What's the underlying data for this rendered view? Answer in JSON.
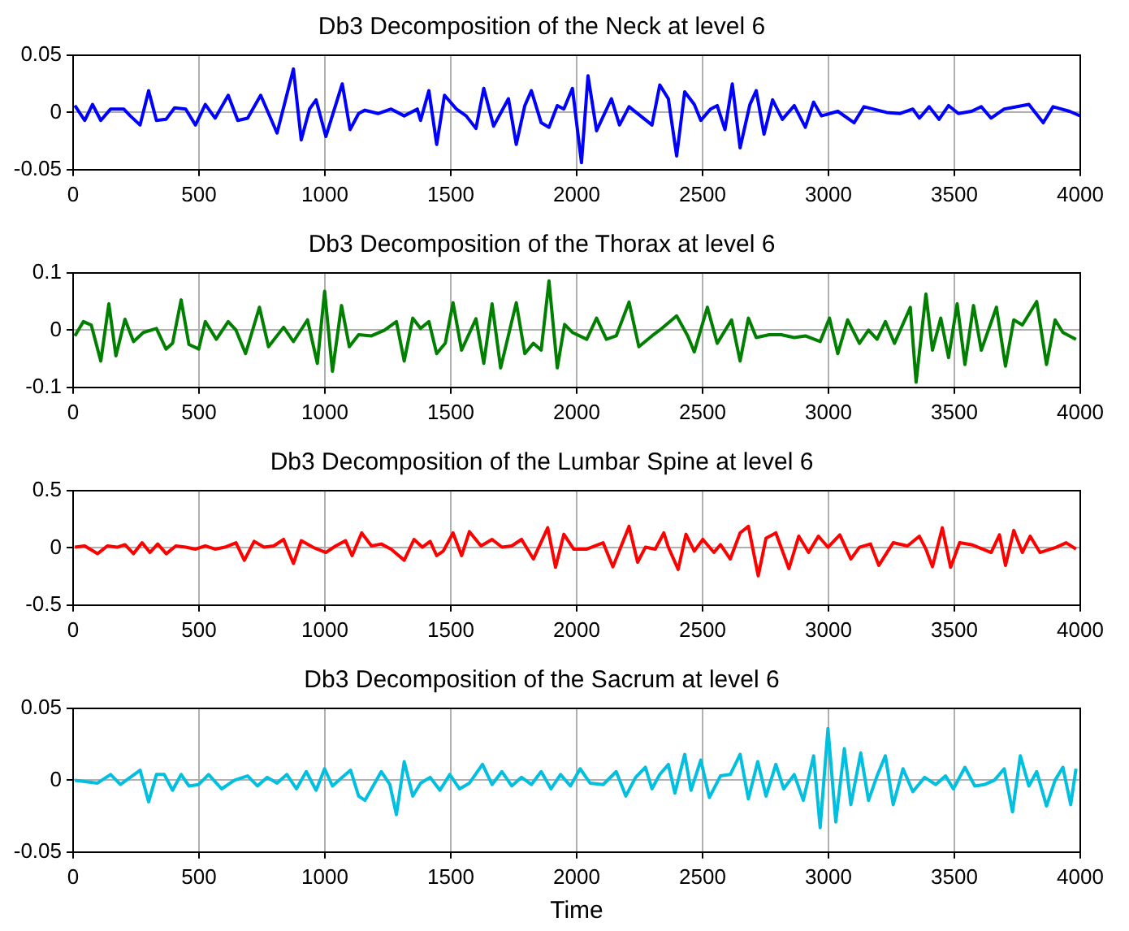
{
  "chart_data": [
    {
      "type": "line",
      "title": "Db3 Decomposition of the Neck at level 6",
      "xlim": [
        0,
        4000
      ],
      "xticks": [
        0,
        500,
        1000,
        1500,
        2000,
        2500,
        3000,
        3500,
        4000
      ],
      "ylim": [
        -0.05,
        0.05
      ],
      "yticks": [
        -0.05,
        0,
        0.05
      ],
      "grid": true,
      "line_style": "solid",
      "marker": "none",
      "series": [
        {
          "color": "#0000ff",
          "x": [
            7,
            46,
            77,
            110,
            149,
            201,
            227,
            266,
            300,
            331,
            369,
            403,
            447,
            486,
            525,
            564,
            616,
            654,
            693,
            745,
            810,
            875,
            906,
            939,
            965,
            1004,
            1069,
            1100,
            1134,
            1159,
            1211,
            1263,
            1315,
            1367,
            1380,
            1413,
            1444,
            1475,
            1522,
            1561,
            1600,
            1631,
            1670,
            1729,
            1760,
            1794,
            1820,
            1859,
            1890,
            1923,
            1949,
            1983,
            2019,
            2045,
            2079,
            2138,
            2170,
            2208,
            2299,
            2330,
            2364,
            2397,
            2429,
            2467,
            2493,
            2532,
            2558,
            2589,
            2618,
            2649,
            2688,
            2713,
            2744,
            2778,
            2817,
            2864,
            2908,
            2941,
            2972,
            3037,
            3102,
            3141,
            3231,
            3283,
            3335,
            3361,
            3400,
            3439,
            3477,
            3516,
            3568,
            3607,
            3646,
            3698,
            3796,
            3853,
            3892,
            3957,
            4000
          ],
          "values": [
            0.006,
            -0.007,
            0.007,
            -0.007,
            0.003,
            0.003,
            -0.003,
            -0.011,
            0.019,
            -0.007,
            -0.006,
            0.004,
            0.003,
            -0.011,
            0.007,
            -0.005,
            0.015,
            -0.007,
            -0.005,
            0.015,
            -0.018,
            0.038,
            -0.024,
            0.003,
            0.011,
            -0.021,
            0.025,
            -0.015,
            -0.001,
            0.002,
            -0.001,
            0.003,
            -0.003,
            0.003,
            -0.007,
            0.019,
            -0.028,
            0.015,
            0.003,
            -0.003,
            -0.014,
            0.021,
            -0.012,
            0.012,
            -0.028,
            0.006,
            0.019,
            -0.009,
            -0.013,
            0.006,
            0.003,
            0.021,
            -0.044,
            0.032,
            -0.016,
            0.012,
            -0.011,
            0.005,
            -0.011,
            0.024,
            0.012,
            -0.038,
            0.018,
            0.007,
            -0.007,
            0.003,
            0.006,
            -0.015,
            0.025,
            -0.031,
            0.007,
            0.019,
            -0.019,
            0.011,
            -0.006,
            0.006,
            -0.013,
            0.009,
            -0.003,
            0.001,
            -0.009,
            0.005,
            0,
            -0.001,
            0.003,
            -0.005,
            0.005,
            -0.006,
            0.006,
            -0.001,
            0.001,
            0.005,
            -0.005,
            0.003,
            0.007,
            -0.009,
            0.005,
            0.001,
            -0.003
          ]
        }
      ]
    },
    {
      "type": "line",
      "title": "Db3 Decomposition of the Thorax at level 6",
      "xlim": [
        0,
        4000
      ],
      "xticks": [
        0,
        500,
        1000,
        1500,
        2000,
        2500,
        3000,
        3500,
        4000
      ],
      "ylim": [
        -0.1,
        0.1
      ],
      "yticks": [
        -0.1,
        0,
        0.1
      ],
      "grid": true,
      "line_style": "solid",
      "marker": "none",
      "series": [
        {
          "color": "#007f00",
          "x": [
            7,
            41,
            72,
            110,
            142,
            170,
            206,
            240,
            279,
            331,
            369,
            395,
            429,
            460,
            499,
            525,
            569,
            616,
            647,
            685,
            740,
            776,
            836,
            875,
            931,
            970,
            999,
            1030,
            1066,
            1097,
            1134,
            1185,
            1237,
            1284,
            1315,
            1349,
            1380,
            1413,
            1444,
            1478,
            1509,
            1543,
            1600,
            1631,
            1664,
            1698,
            1760,
            1794,
            1828,
            1859,
            1890,
            1923,
            1952,
            1983,
            2040,
            2079,
            2118,
            2157,
            2208,
            2247,
            2299,
            2338,
            2397,
            2441,
            2467,
            2519,
            2558,
            2615,
            2649,
            2682,
            2713,
            2765,
            2812,
            2864,
            2908,
            2967,
            3004,
            3037,
            3076,
            3123,
            3159,
            3193,
            3226,
            3262,
            3325,
            3348,
            3387,
            3413,
            3446,
            3477,
            3511,
            3542,
            3576,
            3607,
            3667,
            3703,
            3736,
            3770,
            3827,
            3866,
            3900,
            3931,
            3983
          ],
          "values": [
            -0.01,
            0.015,
            0.009,
            -0.054,
            0.046,
            -0.045,
            0.019,
            -0.02,
            -0.004,
            0.003,
            -0.033,
            -0.023,
            0.053,
            -0.025,
            -0.033,
            0.015,
            -0.016,
            0.015,
            0,
            -0.041,
            0.04,
            -0.029,
            0.005,
            -0.02,
            0.018,
            -0.058,
            0.068,
            -0.072,
            0.043,
            -0.029,
            -0.008,
            -0.01,
            0,
            0.015,
            -0.054,
            0.021,
            0.003,
            0.015,
            -0.041,
            -0.023,
            0.048,
            -0.035,
            0.02,
            -0.058,
            0.046,
            -0.066,
            0.048,
            -0.041,
            -0.023,
            -0.035,
            0.086,
            -0.066,
            0.01,
            -0.004,
            -0.016,
            0.021,
            -0.016,
            -0.01,
            0.049,
            -0.029,
            -0.01,
            0.003,
            0.025,
            -0.01,
            -0.038,
            0.04,
            -0.023,
            0.018,
            -0.054,
            0.021,
            -0.013,
            -0.008,
            -0.008,
            -0.013,
            -0.01,
            -0.02,
            0.021,
            -0.041,
            0.018,
            -0.023,
            0,
            -0.016,
            0.015,
            -0.023,
            0.04,
            -0.091,
            0.063,
            -0.035,
            0.021,
            -0.048,
            0.046,
            -0.06,
            0.043,
            -0.035,
            0.04,
            -0.063,
            0.018,
            0.009,
            0.05,
            -0.06,
            0.018,
            -0.004,
            -0.016
          ]
        }
      ]
    },
    {
      "type": "line",
      "title": "Db3 Decomposition of the Lumbar Spine at level 6",
      "xlim": [
        0,
        4000
      ],
      "xticks": [
        0,
        500,
        1000,
        1500,
        2000,
        2500,
        3000,
        3500,
        4000
      ],
      "ylim": [
        -0.5,
        0.5
      ],
      "yticks": [
        -0.5,
        0,
        0.5
      ],
      "grid": true,
      "line_style": "solid",
      "marker": "none",
      "series": [
        {
          "color": "#ff0000",
          "x": [
            7,
            46,
            97,
            136,
            175,
            206,
            240,
            274,
            305,
            336,
            370,
            408,
            447,
            486,
            525,
            564,
            603,
            647,
            680,
            719,
            758,
            797,
            836,
            875,
            906,
            952,
            1004,
            1043,
            1082,
            1108,
            1146,
            1185,
            1224,
            1263,
            1315,
            1354,
            1387,
            1418,
            1444,
            1470,
            1509,
            1543,
            1574,
            1620,
            1664,
            1703,
            1742,
            1781,
            1828,
            1885,
            1916,
            1949,
            1988,
            2040,
            2105,
            2144,
            2208,
            2242,
            2273,
            2312,
            2346,
            2364,
            2403,
            2434,
            2467,
            2501,
            2545,
            2571,
            2610,
            2649,
            2682,
            2721,
            2752,
            2791,
            2843,
            2882,
            2921,
            2960,
            2998,
            3045,
            3089,
            3123,
            3167,
            3200,
            3257,
            3314,
            3361,
            3387,
            3413,
            3452,
            3485,
            3521,
            3568,
            3646,
            3679,
            3703,
            3736,
            3770,
            3801,
            3840,
            3905,
            3944,
            3983
          ],
          "values": [
            0.006,
            0.017,
            -0.051,
            0.017,
            0.006,
            0.028,
            -0.051,
            0.045,
            -0.04,
            0.034,
            -0.051,
            0.017,
            0.006,
            -0.011,
            0.017,
            -0.011,
            0.006,
            0.045,
            -0.108,
            0.057,
            0.006,
            0.017,
            0.074,
            -0.136,
            0.063,
            0.006,
            -0.04,
            0.017,
            0.063,
            -0.068,
            0.131,
            0.017,
            0.034,
            -0.011,
            -0.108,
            0.074,
            0.006,
            0.057,
            -0.068,
            -0.028,
            0.131,
            -0.068,
            0.142,
            0.017,
            0.074,
            0.006,
            0.017,
            0.074,
            -0.097,
            0.176,
            -0.17,
            0.119,
            -0.011,
            -0.011,
            0.045,
            -0.165,
            0.188,
            -0.125,
            0.006,
            -0.011,
            0.131,
            0.006,
            -0.188,
            0.119,
            -0.028,
            0.074,
            -0.04,
            0.028,
            -0.097,
            0.131,
            0.188,
            -0.244,
            0.085,
            0.131,
            -0.182,
            0.102,
            -0.04,
            0.102,
            0.006,
            0.114,
            -0.097,
            0.006,
            0.034,
            -0.153,
            0.045,
            0.017,
            0.102,
            -0.011,
            -0.165,
            0.176,
            -0.17,
            0.045,
            0.028,
            -0.04,
            0.114,
            -0.153,
            0.153,
            -0.04,
            0.102,
            -0.04,
            0.006,
            0.045,
            -0.011
          ]
        }
      ]
    },
    {
      "type": "line",
      "title": "Db3 Decomposition of the Sacrum at level 6",
      "xlabel": "Time",
      "xlim": [
        0,
        4000
      ],
      "xticks": [
        0,
        500,
        1000,
        1500,
        2000,
        2500,
        3000,
        3500,
        4000
      ],
      "ylim": [
        -0.05,
        0.05
      ],
      "yticks": [
        -0.05,
        0,
        0.05
      ],
      "grid": true,
      "line_style": "solid",
      "marker": "none",
      "series": [
        {
          "color": "#00bfdf",
          "x": [
            7,
            97,
            149,
            188,
            227,
            266,
            300,
            331,
            362,
            395,
            429,
            460,
            499,
            538,
            590,
            641,
            693,
            732,
            771,
            810,
            849,
            887,
            926,
            965,
            999,
            1030,
            1069,
            1102,
            1134,
            1159,
            1224,
            1258,
            1284,
            1315,
            1349,
            1380,
            1418,
            1457,
            1496,
            1535,
            1574,
            1626,
            1664,
            1703,
            1742,
            1781,
            1820,
            1859,
            1898,
            1936,
            1975,
            2014,
            2053,
            2105,
            2157,
            2195,
            2234,
            2273,
            2299,
            2330,
            2364,
            2390,
            2429,
            2454,
            2493,
            2527,
            2571,
            2610,
            2649,
            2682,
            2719,
            2752,
            2791,
            2822,
            2864,
            2900,
            2941,
            2967,
            2998,
            3029,
            3063,
            3089,
            3128,
            3159,
            3193,
            3226,
            3257,
            3296,
            3335,
            3382,
            3426,
            3465,
            3496,
            3542,
            3581,
            3620,
            3659,
            3698,
            3731,
            3762,
            3796,
            3827,
            3866,
            3900,
            3931,
            3962,
            3983
          ],
          "values": [
            0,
            -0.002,
            0.004,
            -0.003,
            0.002,
            0.007,
            -0.015,
            0.004,
            0.004,
            -0.007,
            0.004,
            -0.004,
            -0.003,
            0.004,
            -0.006,
            0,
            0.003,
            -0.004,
            0.002,
            -0.002,
            0.004,
            -0.006,
            0.006,
            -0.007,
            0.008,
            -0.004,
            0.002,
            0.007,
            -0.011,
            -0.014,
            0.006,
            -0.003,
            -0.024,
            0.013,
            -0.011,
            -0.002,
            0.002,
            -0.007,
            0.004,
            -0.006,
            -0.002,
            0.011,
            -0.003,
            0.006,
            -0.004,
            0.002,
            -0.003,
            0.006,
            -0.006,
            0.004,
            -0.004,
            0.008,
            -0.002,
            -0.003,
            0.006,
            -0.011,
            0.002,
            0.009,
            -0.006,
            0.004,
            0.011,
            -0.009,
            0.018,
            -0.007,
            0.014,
            -0.012,
            0.003,
            0.004,
            0.018,
            -0.013,
            0.013,
            -0.011,
            0.011,
            -0.006,
            0.004,
            -0.014,
            0.017,
            -0.033,
            0.036,
            -0.029,
            0.022,
            -0.017,
            0.019,
            -0.014,
            0.003,
            0.017,
            -0.017,
            0.008,
            -0.008,
            0.002,
            -0.003,
            0.003,
            -0.006,
            0.009,
            -0.004,
            -0.003,
            0,
            0.008,
            -0.022,
            0.017,
            -0.004,
            0.006,
            -0.018,
            0,
            0.009,
            -0.017,
            0.008
          ]
        }
      ]
    }
  ]
}
